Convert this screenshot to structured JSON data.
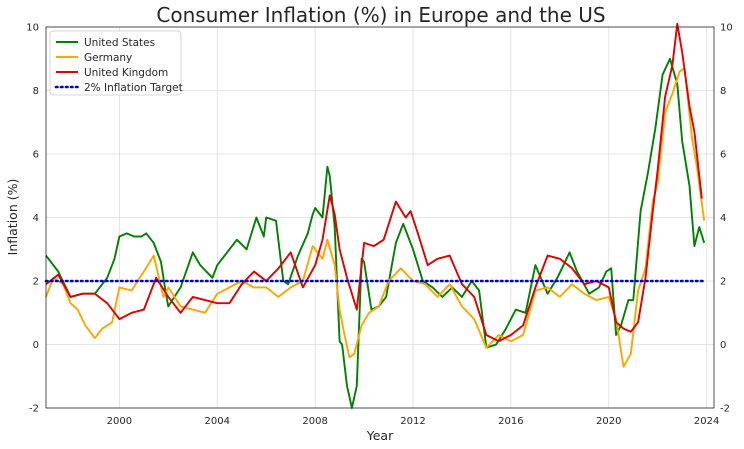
{
  "chart_data": {
    "type": "line",
    "title": "Consumer Inflation (%) in Europe and the US",
    "xlabel": "Year",
    "ylabel": "Inflation (%)",
    "xlim": [
      1997.0,
      2024.3
    ],
    "ylim": [
      -2,
      10
    ],
    "xticks": [
      2000,
      2004,
      2008,
      2012,
      2016,
      2020,
      2024
    ],
    "yticks": [
      -2,
      0,
      2,
      4,
      6,
      8,
      10
    ],
    "grid": true,
    "legend_position": "top-left",
    "series": [
      {
        "name": "United States",
        "color": "#008000",
        "style": "solid",
        "x": [
          1997.0,
          1997.5,
          1998.0,
          1998.5,
          1999.0,
          1999.5,
          1999.8,
          2000.0,
          2000.3,
          2000.6,
          2000.9,
          2001.1,
          2001.4,
          2001.7,
          2001.9,
          2002.0,
          2002.5,
          2003.0,
          2003.3,
          2003.8,
          2004.0,
          2004.5,
          2004.8,
          2005.2,
          2005.6,
          2005.9,
          2006.0,
          2006.4,
          2006.7,
          2006.9,
          2007.3,
          2007.7,
          2007.9,
          2008.0,
          2008.3,
          2008.5,
          2008.6,
          2008.8,
          2009.0,
          2009.1,
          2009.3,
          2009.5,
          2009.7,
          2009.9,
          2010.0,
          2010.3,
          2010.6,
          2010.9,
          2011.3,
          2011.6,
          2011.8,
          2012.0,
          2012.4,
          2012.8,
          2013.2,
          2013.6,
          2014.0,
          2014.4,
          2014.7,
          2015.0,
          2015.4,
          2015.8,
          2016.2,
          2016.6,
          2017.0,
          2017.5,
          2017.9,
          2018.4,
          2018.7,
          2019.2,
          2019.6,
          2019.9,
          2020.1,
          2020.3,
          2020.5,
          2020.8,
          2021.0,
          2021.3,
          2021.6,
          2021.9,
          2022.2,
          2022.5,
          2022.8,
          2023.0,
          2023.3,
          2023.5,
          2023.7,
          2023.9
        ],
        "values": [
          2.8,
          2.3,
          1.5,
          1.6,
          1.6,
          2.1,
          2.7,
          3.4,
          3.5,
          3.4,
          3.4,
          3.5,
          3.2,
          2.6,
          1.6,
          1.2,
          1.8,
          2.9,
          2.5,
          2.1,
          2.5,
          3.0,
          3.3,
          3.0,
          4.0,
          3.4,
          4.0,
          3.9,
          2.0,
          1.9,
          2.8,
          3.5,
          4.1,
          4.3,
          4.0,
          5.6,
          5.3,
          3.7,
          0.1,
          0.0,
          -1.3,
          -2.0,
          -1.3,
          2.7,
          2.6,
          1.1,
          1.2,
          1.5,
          3.2,
          3.8,
          3.4,
          3.0,
          2.0,
          1.8,
          1.5,
          1.8,
          1.5,
          2.0,
          1.7,
          -0.1,
          0.0,
          0.5,
          1.1,
          1.0,
          2.5,
          1.6,
          2.1,
          2.9,
          2.3,
          1.6,
          1.8,
          2.3,
          2.4,
          0.3,
          0.6,
          1.4,
          1.4,
          4.2,
          5.4,
          6.8,
          8.5,
          9.0,
          8.2,
          6.4,
          5.0,
          3.1,
          3.7,
          3.2
        ]
      },
      {
        "name": "Germany",
        "color": "#ffa500",
        "style": "solid",
        "x": [
          1997.0,
          1997.3,
          1997.7,
          1998.0,
          1998.3,
          1998.6,
          1999.0,
          1999.3,
          1999.7,
          2000.0,
          2000.5,
          2001.0,
          2001.4,
          2001.8,
          2002.0,
          2002.5,
          2003.0,
          2003.5,
          2004.0,
          2004.5,
          2005.0,
          2005.5,
          2006.0,
          2006.5,
          2007.0,
          2007.5,
          2007.9,
          2008.3,
          2008.5,
          2008.8,
          2009.0,
          2009.2,
          2009.4,
          2009.6,
          2009.9,
          2010.2,
          2010.6,
          2011.0,
          2011.5,
          2012.0,
          2012.5,
          2013.0,
          2013.5,
          2014.0,
          2014.5,
          2015.0,
          2015.5,
          2016.0,
          2016.5,
          2017.0,
          2017.5,
          2018.0,
          2018.5,
          2019.0,
          2019.5,
          2020.0,
          2020.3,
          2020.6,
          2020.9,
          2021.2,
          2021.5,
          2021.8,
          2022.0,
          2022.3,
          2022.6,
          2022.9,
          2023.1,
          2023.4,
          2023.6,
          2023.9
        ],
        "values": [
          1.5,
          2.1,
          1.9,
          1.3,
          1.1,
          0.6,
          0.2,
          0.5,
          0.7,
          1.8,
          1.7,
          2.3,
          2.8,
          1.5,
          1.8,
          1.2,
          1.1,
          1.0,
          1.6,
          1.8,
          2.0,
          1.8,
          1.8,
          1.5,
          1.8,
          2.0,
          3.1,
          2.7,
          3.3,
          2.5,
          1.1,
          0.3,
          -0.4,
          -0.3,
          0.6,
          1.0,
          1.2,
          2.0,
          2.4,
          2.0,
          1.9,
          1.5,
          1.9,
          1.2,
          0.8,
          -0.1,
          0.3,
          0.1,
          0.3,
          1.7,
          1.8,
          1.5,
          1.9,
          1.6,
          1.4,
          1.5,
          0.8,
          -0.7,
          -0.3,
          1.7,
          2.4,
          4.5,
          5.1,
          7.3,
          7.9,
          8.6,
          8.7,
          6.5,
          5.6,
          3.9
        ]
      },
      {
        "name": "United Kingdom",
        "color": "#e00000",
        "style": "solid",
        "x": [
          1997.0,
          1997.5,
          1998.0,
          1998.5,
          1999.0,
          1999.5,
          2000.0,
          2000.5,
          2001.0,
          2001.5,
          2002.0,
          2002.5,
          2003.0,
          2003.5,
          2004.0,
          2004.5,
          2005.0,
          2005.5,
          2006.0,
          2006.5,
          2007.0,
          2007.5,
          2008.0,
          2008.3,
          2008.6,
          2008.8,
          2009.0,
          2009.3,
          2009.7,
          2010.0,
          2010.4,
          2010.8,
          2011.3,
          2011.7,
          2011.9,
          2012.2,
          2012.6,
          2013.0,
          2013.5,
          2014.0,
          2014.5,
          2015.0,
          2015.5,
          2016.0,
          2016.5,
          2017.0,
          2017.5,
          2018.0,
          2018.5,
          2019.0,
          2019.5,
          2020.0,
          2020.3,
          2020.6,
          2020.9,
          2021.2,
          2021.5,
          2021.8,
          2022.0,
          2022.3,
          2022.6,
          2022.8,
          2023.0,
          2023.3,
          2023.5,
          2023.8
        ],
        "values": [
          1.9,
          2.2,
          1.5,
          1.6,
          1.6,
          1.3,
          0.8,
          1.0,
          1.1,
          2.1,
          1.5,
          1.0,
          1.5,
          1.4,
          1.3,
          1.3,
          1.9,
          2.3,
          2.0,
          2.4,
          2.9,
          1.8,
          2.5,
          3.3,
          4.7,
          4.1,
          3.0,
          2.1,
          1.1,
          3.2,
          3.1,
          3.3,
          4.5,
          4.0,
          4.2,
          3.5,
          2.5,
          2.7,
          2.8,
          1.9,
          1.5,
          0.3,
          0.1,
          0.3,
          0.6,
          1.8,
          2.8,
          2.7,
          2.4,
          1.9,
          2.0,
          1.8,
          0.7,
          0.5,
          0.4,
          0.7,
          2.1,
          4.2,
          5.5,
          7.8,
          8.8,
          10.1,
          9.2,
          7.5,
          6.7,
          4.6
        ]
      },
      {
        "name": "2% Inflation Target",
        "color": "#0000cc",
        "style": "dotted",
        "x": [
          1997.0,
          2023.9
        ],
        "values": [
          2,
          2
        ]
      }
    ]
  }
}
